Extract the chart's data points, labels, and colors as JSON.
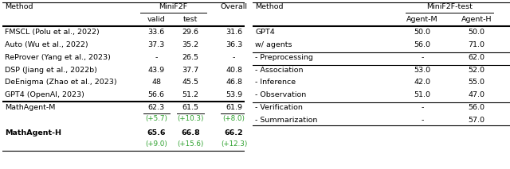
{
  "left_table": {
    "rows": [
      [
        "FMSCL (Polu et al., 2022)",
        "33.6",
        "29.6",
        "31.6"
      ],
      [
        "Auto (Wu et al., 2022)",
        "37.3",
        "35.2",
        "36.3"
      ],
      [
        "ReProver (Yang et al., 2023)",
        "-",
        "26.5",
        "-"
      ],
      [
        "DSP (Jiang et al., 2022b)",
        "43.9",
        "37.7",
        "40.8"
      ],
      [
        "DeEnigma (Zhao et al., 2023)",
        "48",
        "45.5",
        "46.8"
      ],
      [
        "GPT4 (OpenAI, 2023)",
        "56.6",
        "51.2",
        "53.9"
      ]
    ],
    "agent_m": {
      "name": "MathAgent-M",
      "values": [
        "62.3",
        "61.5",
        "61.9"
      ],
      "deltas": [
        "(+5.7)",
        "(+10.3)",
        "(+8.0)"
      ]
    },
    "agent_h": {
      "name": "MathAgent-H",
      "values": [
        "65.6",
        "66.8",
        "66.2"
      ],
      "deltas": [
        "(+9.0)",
        "(+15.6)",
        "(+12.3)"
      ]
    }
  },
  "right_table": {
    "section1": [
      [
        "GPT4",
        "50.0",
        "50.0"
      ],
      [
        "w/ agents",
        "56.0",
        "71.0"
      ]
    ],
    "section2": [
      [
        "- Preprocessing",
        "-",
        "62.0"
      ]
    ],
    "section3": [
      [
        "- Association",
        "53.0",
        "52.0"
      ],
      [
        "- Inference",
        "42.0",
        "55.0"
      ],
      [
        "- Observation",
        "51.0",
        "47.0"
      ]
    ],
    "section4": [
      [
        "- Verification",
        "-",
        "56.0"
      ],
      [
        "- Summarization",
        "-",
        "57.0"
      ]
    ]
  },
  "green_color": "#2ca02c",
  "font_size": 6.8,
  "bg_color": "white"
}
